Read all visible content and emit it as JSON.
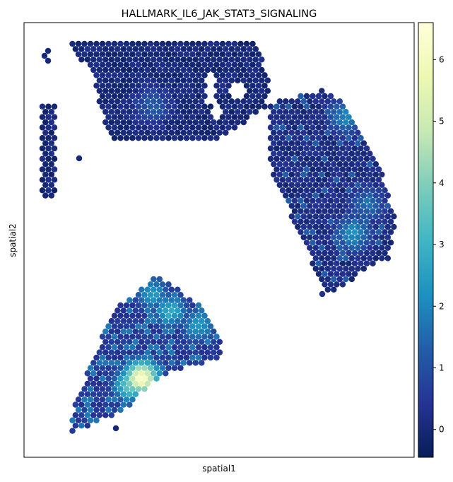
{
  "chart_data": {
    "type": "scatter",
    "title": "HALLMARK_IL6_JAK_STAT3_SIGNALING",
    "xlabel": "spatial1",
    "ylabel": "spatial2",
    "colormap": "YlGnBu_r",
    "colorbar": {
      "vmin": -0.45,
      "vmax": 6.6,
      "ticks": [
        0,
        1,
        2,
        3,
        4,
        5,
        6
      ],
      "tick_labels": [
        "0",
        "1",
        "2",
        "3",
        "4",
        "5",
        "6"
      ]
    },
    "grid": false,
    "axis_ticks_shown": false,
    "regions": [
      {
        "name": "top-left cluster",
        "typical_value": 0.0,
        "max_value": 1.5
      },
      {
        "name": "right cluster",
        "typical_value": 0.2,
        "max_value": 2.4
      },
      {
        "name": "bottom-left cluster",
        "typical_value": 0.6,
        "max_value": 6.4
      }
    ],
    "hotspots": [
      {
        "value": 6.4,
        "sx": 200,
        "sy": 535
      },
      {
        "value": 4.0,
        "sx": 185,
        "sy": 545
      },
      {
        "value": 3.0,
        "sx": 240,
        "sy": 440
      },
      {
        "value": 2.6,
        "sx": 280,
        "sy": 460
      },
      {
        "value": 2.6,
        "sx": 215,
        "sy": 415
      },
      {
        "value": 2.4,
        "sx": 500,
        "sy": 330
      },
      {
        "value": 2.2,
        "sx": 490,
        "sy": 165
      },
      {
        "value": 1.5,
        "sx": 215,
        "sy": 150
      },
      {
        "value": 1.8,
        "sx": 520,
        "sy": 290
      }
    ]
  }
}
